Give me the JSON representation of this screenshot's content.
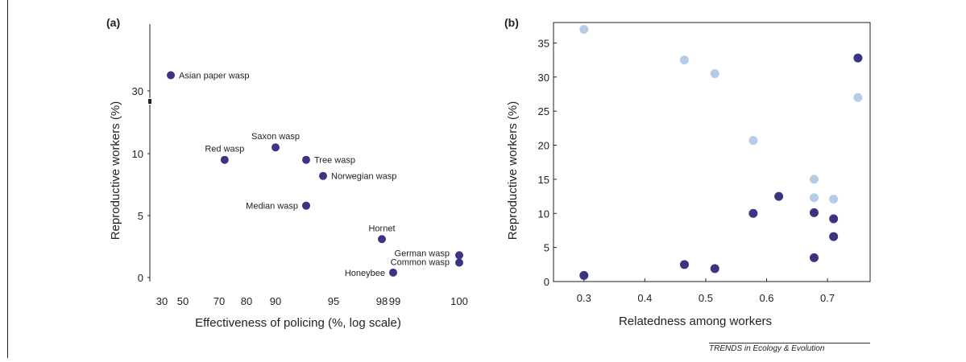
{
  "figure": {
    "credit": "TRENDS in Ecology & Evolution",
    "colors": {
      "dark_marker": "#3a3582",
      "light_marker": "#b5cce6",
      "axis": "#222222"
    }
  },
  "chart_data": [
    {
      "panel": "(a)",
      "type": "scatter",
      "xlabel": "Effectiveness of policing (%, log scale)",
      "ylabel": "Reproductive workers (%)",
      "x_scale": "log (effectiveness of policing)",
      "xticks": [
        "30",
        "50",
        "70",
        "80",
        "90",
        "95",
        "98",
        "99",
        "100"
      ],
      "yticks": [
        "0",
        "5",
        "10",
        "30"
      ],
      "y_axis_break": "between 10 and 30",
      "grid": false,
      "points": [
        {
          "label": "Asian paper wasp",
          "x": 40,
          "y": 35
        },
        {
          "label": "Saxon wasp",
          "x": 88,
          "y": 12
        },
        {
          "label": "Red wasp",
          "x": 72,
          "y": 9.5
        },
        {
          "label": "Tree wasp",
          "x": 92,
          "y": 9.5
        },
        {
          "label": "Norwegian wasp",
          "x": 93.5,
          "y": 8.2
        },
        {
          "label": "Median wasp",
          "x": 92,
          "y": 5.8
        },
        {
          "label": "Hornet",
          "x": 98,
          "y": 3.1
        },
        {
          "label": "German wasp",
          "x": 100,
          "y": 1.8
        },
        {
          "label": "Common wasp",
          "x": 100,
          "y": 1.2
        },
        {
          "label": "Honeybee",
          "x": 98.5,
          "y": 0.4
        }
      ]
    },
    {
      "panel": "(b)",
      "type": "scatter",
      "xlabel": "Relatedness among workers",
      "ylabel": "Reproductive workers (%)",
      "xlim": [
        0.25,
        0.77
      ],
      "ylim": [
        0,
        38
      ],
      "xticks": [
        0.3,
        0.4,
        0.5,
        0.6,
        0.7
      ],
      "yticks": [
        0,
        5,
        10,
        15,
        20,
        25,
        30,
        35
      ],
      "grid": false,
      "series": [
        {
          "color": "#b5cce6",
          "points": [
            [
              0.3,
              37.0
            ],
            [
              0.465,
              32.5
            ],
            [
              0.515,
              30.5
            ],
            [
              0.578,
              20.7
            ],
            [
              0.678,
              15.0
            ],
            [
              0.678,
              12.3
            ],
            [
              0.71,
              12.1
            ],
            [
              0.75,
              27.0
            ]
          ]
        },
        {
          "color": "#3a3582",
          "points": [
            [
              0.3,
              0.9
            ],
            [
              0.465,
              2.5
            ],
            [
              0.515,
              1.9
            ],
            [
              0.578,
              10.0
            ],
            [
              0.62,
              12.5
            ],
            [
              0.678,
              10.1
            ],
            [
              0.678,
              3.5
            ],
            [
              0.71,
              9.2
            ],
            [
              0.71,
              6.6
            ],
            [
              0.75,
              32.8
            ]
          ]
        }
      ]
    }
  ]
}
